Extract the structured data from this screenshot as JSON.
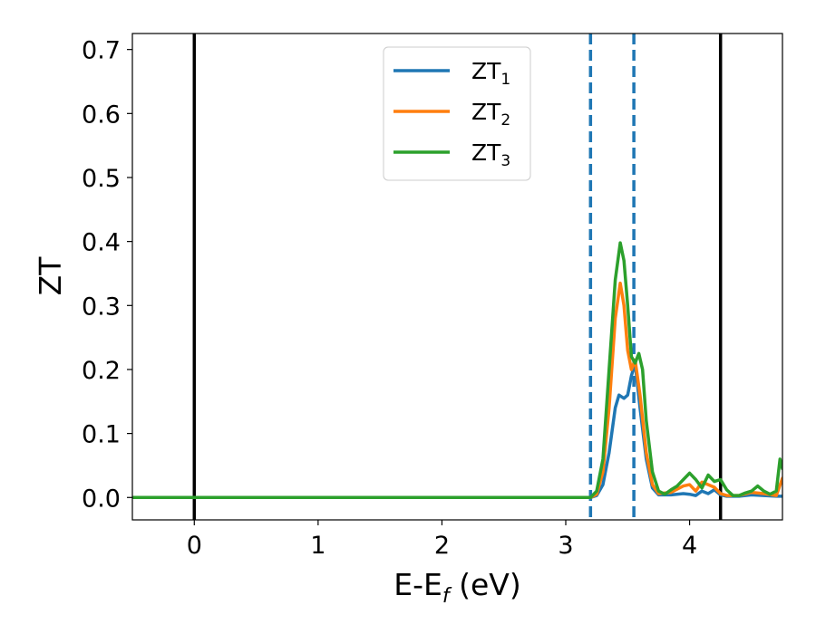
{
  "chart_data": {
    "type": "line",
    "xlabel": {
      "main": "E-E",
      "sub": "f",
      "unit": " (eV)"
    },
    "ylabel": "ZT",
    "xlim": [
      -0.5,
      4.75
    ],
    "ylim": [
      -0.035,
      0.725
    ],
    "x_ticks": [
      0,
      1,
      2,
      3,
      4
    ],
    "x_tick_labels": [
      "0",
      "1",
      "2",
      "3",
      "4"
    ],
    "y_ticks": [
      0.0,
      0.1,
      0.2,
      0.3,
      0.4,
      0.5,
      0.6,
      0.7
    ],
    "y_tick_labels": [
      "0.0",
      "0.1",
      "0.2",
      "0.3",
      "0.4",
      "0.5",
      "0.6",
      "0.7"
    ],
    "grid": false,
    "legend_position": "upper-center",
    "vlines": [
      {
        "x": 0.0,
        "style": "solid",
        "color": "#000000"
      },
      {
        "x": 4.25,
        "style": "solid",
        "color": "#000000"
      },
      {
        "x": 3.2,
        "style": "dashed",
        "color": "#1f77b4"
      },
      {
        "x": 3.55,
        "style": "dashed",
        "color": "#1f77b4"
      }
    ],
    "series": [
      {
        "name": {
          "main": "ZT",
          "sub": "1"
        },
        "color": "#1f77b4",
        "x": [
          -0.5,
          3.2,
          3.25,
          3.3,
          3.35,
          3.4,
          3.43,
          3.47,
          3.5,
          3.53,
          3.56,
          3.6,
          3.65,
          3.7,
          3.75,
          3.85,
          3.95,
          4.0,
          4.05,
          4.1,
          4.15,
          4.2,
          4.25,
          4.3,
          4.4,
          4.5,
          4.6,
          4.7,
          4.75
        ],
        "y": [
          0.0,
          0.0,
          0.003,
          0.02,
          0.07,
          0.14,
          0.16,
          0.155,
          0.16,
          0.19,
          0.21,
          0.14,
          0.06,
          0.015,
          0.004,
          0.004,
          0.006,
          0.005,
          0.003,
          0.01,
          0.006,
          0.012,
          0.004,
          0.002,
          0.002,
          0.004,
          0.003,
          0.002,
          0.002
        ]
      },
      {
        "name": {
          "main": "ZT",
          "sub": "2"
        },
        "color": "#ff7f0e",
        "x": [
          -0.5,
          3.2,
          3.25,
          3.3,
          3.35,
          3.4,
          3.44,
          3.47,
          3.5,
          3.53,
          3.56,
          3.6,
          3.65,
          3.7,
          3.75,
          3.85,
          3.95,
          4.0,
          4.05,
          4.1,
          4.15,
          4.2,
          4.25,
          4.3,
          4.4,
          4.5,
          4.6,
          4.7,
          4.75
        ],
        "y": [
          0.0,
          0.0,
          0.005,
          0.04,
          0.14,
          0.28,
          0.335,
          0.3,
          0.23,
          0.2,
          0.215,
          0.16,
          0.07,
          0.02,
          0.006,
          0.008,
          0.018,
          0.02,
          0.01,
          0.024,
          0.02,
          0.016,
          0.006,
          0.003,
          0.003,
          0.008,
          0.006,
          0.003,
          0.03
        ]
      },
      {
        "name": {
          "main": "ZT",
          "sub": "3"
        },
        "color": "#2ca02c",
        "x": [
          -0.5,
          3.2,
          3.25,
          3.3,
          3.35,
          3.4,
          3.44,
          3.47,
          3.5,
          3.53,
          3.56,
          3.59,
          3.62,
          3.65,
          3.7,
          3.75,
          3.8,
          3.85,
          3.9,
          3.95,
          4.0,
          4.05,
          4.1,
          4.15,
          4.2,
          4.25,
          4.3,
          4.35,
          4.4,
          4.45,
          4.5,
          4.55,
          4.6,
          4.65,
          4.7,
          4.73,
          4.75
        ],
        "y": [
          0.0,
          0.0,
          0.01,
          0.06,
          0.2,
          0.34,
          0.398,
          0.37,
          0.3,
          0.22,
          0.21,
          0.225,
          0.2,
          0.12,
          0.04,
          0.01,
          0.005,
          0.012,
          0.018,
          0.028,
          0.038,
          0.028,
          0.015,
          0.035,
          0.025,
          0.028,
          0.012,
          0.003,
          0.003,
          0.007,
          0.01,
          0.018,
          0.01,
          0.005,
          0.01,
          0.06,
          0.045
        ]
      }
    ]
  }
}
